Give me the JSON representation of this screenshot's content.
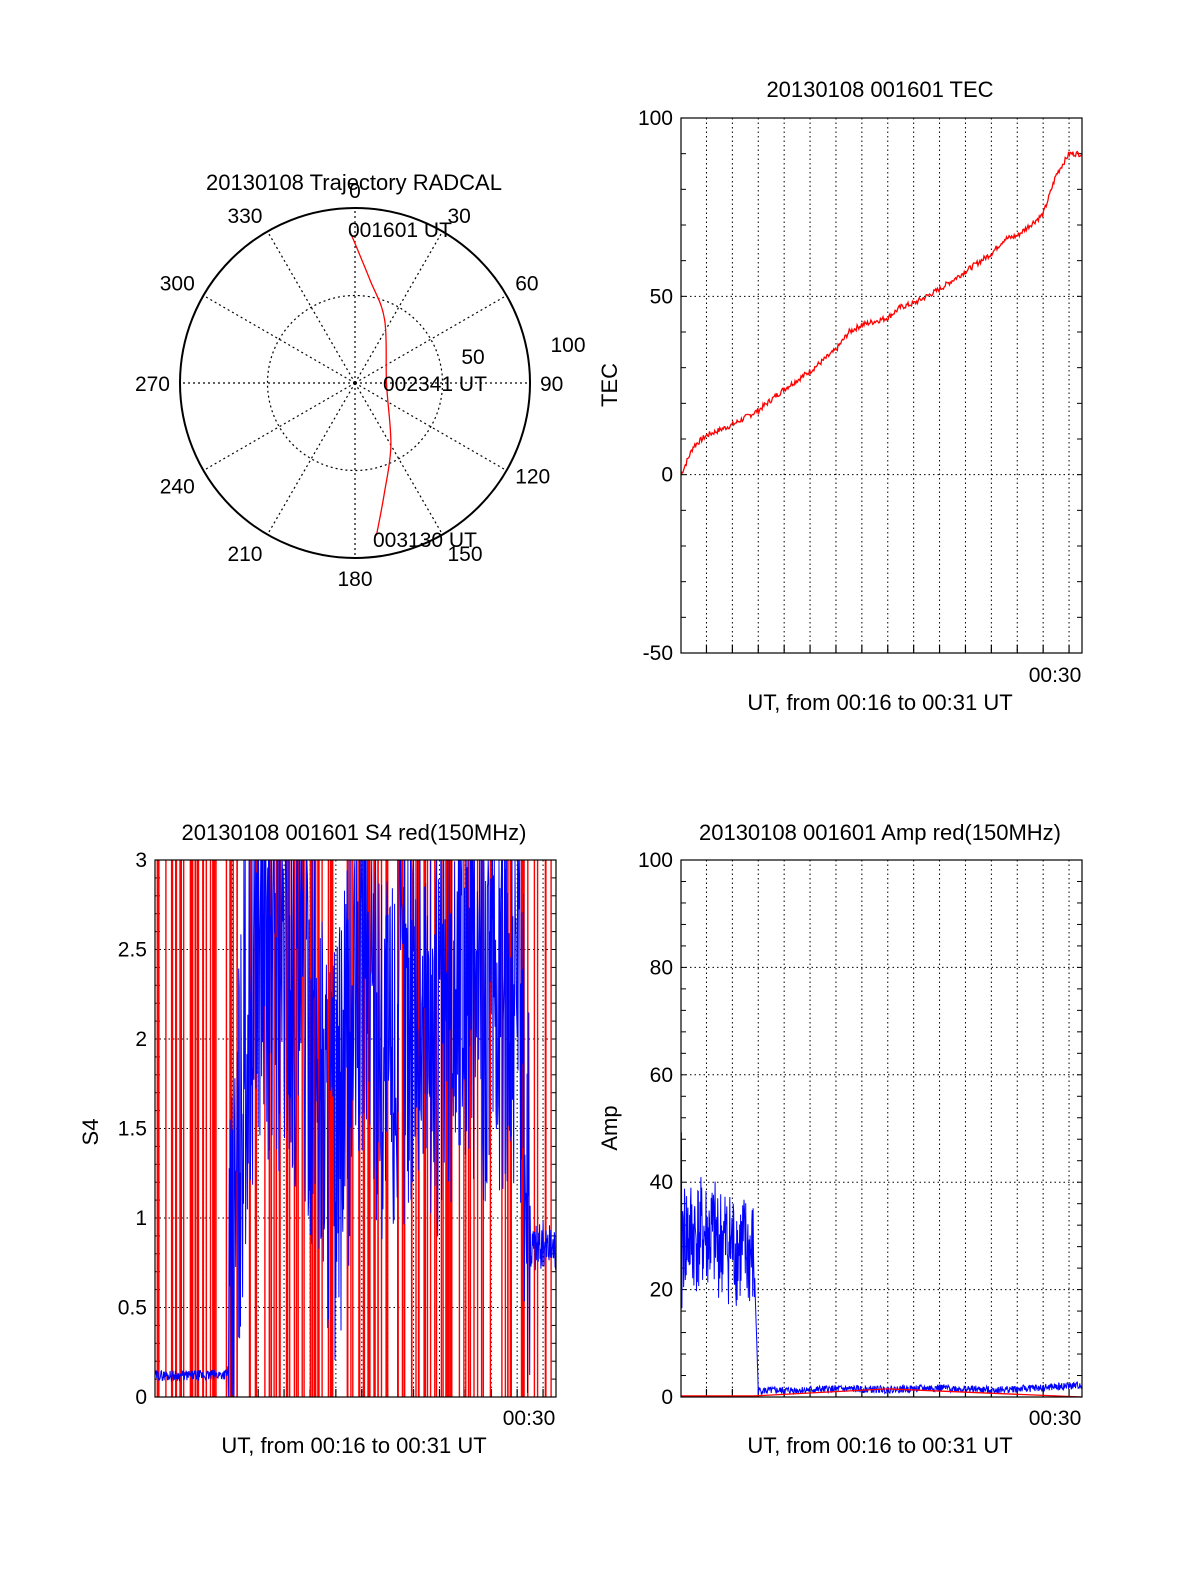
{
  "charts": {
    "polar": {
      "title": "20130108 Trajectory RADCAL",
      "angle_labels": [
        "0",
        "30",
        "60",
        "90",
        "120",
        "150",
        "180",
        "210",
        "240",
        "270",
        "300",
        "330"
      ],
      "radial_labels": [
        "50",
        "100"
      ],
      "annotations": {
        "start": "001601 UT",
        "mid": "002341 UT",
        "end": "003130 UT"
      }
    },
    "tec": {
      "title": "20130108 001601 TEC",
      "ylabel": "TEC",
      "xlabel": "UT, from 00:16 to 00:31 UT",
      "xtick": "00:30",
      "yticks": [
        "-50",
        "0",
        "50",
        "100"
      ]
    },
    "s4": {
      "title": "20130108 001601 S4 red(150MHz)",
      "ylabel": "S4",
      "xlabel": "UT, from 00:16 to 00:31 UT",
      "xtick": "00:30",
      "yticks": [
        "0",
        "0.5",
        "1",
        "1.5",
        "2",
        "2.5",
        "3"
      ]
    },
    "amp": {
      "title": "20130108 001601 Amp red(150MHz)",
      "ylabel": "Amp",
      "xlabel": "UT, from 00:16 to 00:31 UT",
      "xtick": "00:30",
      "yticks": [
        "0",
        "20",
        "40",
        "60",
        "80",
        "100"
      ]
    }
  },
  "chart_data": [
    {
      "type": "scatter",
      "title": "20130108 Trajectory RADCAL",
      "coordinate_system": "polar",
      "angle_ticks_deg": [
        0,
        30,
        60,
        90,
        120,
        150,
        180,
        210,
        240,
        270,
        300,
        330
      ],
      "radial_ticks": [
        50,
        100
      ],
      "rlim": [
        0,
        100
      ],
      "series": [
        {
          "color": "#ff0000",
          "points": [
            {
              "az": 358,
              "r": 87,
              "label": "001601 UT"
            },
            {
              "az": 8,
              "r": 60
            },
            {
              "az": 25,
              "r": 40
            },
            {
              "az": 90,
              "r": 18,
              "label": "002341 UT"
            },
            {
              "az": 150,
              "r": 41
            },
            {
              "az": 165,
              "r": 65
            },
            {
              "az": 172,
              "r": 88,
              "label": "003130 UT"
            }
          ]
        }
      ]
    },
    {
      "type": "line",
      "title": "20130108 001601 TEC",
      "ylabel": "TEC",
      "xlabel": "UT, from 00:16 to 00:31 UT",
      "xlim": [
        "00:16:01",
        "00:31:30"
      ],
      "ylim": [
        -50,
        100
      ],
      "x_ticks": [
        "00:30"
      ],
      "y_ticks": [
        -50,
        0,
        50,
        100
      ],
      "grid": true,
      "series": [
        {
          "color": "#ff0000",
          "x": [
            "00:16:01",
            "00:16:30",
            "00:17:00",
            "00:18:00",
            "00:19:00",
            "00:20:00",
            "00:21:00",
            "00:22:00",
            "00:22:30",
            "00:23:00",
            "00:24:00",
            "00:24:30",
            "00:25:00",
            "00:25:30",
            "00:26:00",
            "00:27:00",
            "00:28:00",
            "00:28:30",
            "00:29:00",
            "00:29:30",
            "00:30:00",
            "00:30:30",
            "00:31:00",
            "00:31:30"
          ],
          "y": [
            0,
            8,
            11,
            14,
            18,
            24,
            29,
            35,
            40,
            42,
            44,
            47,
            48,
            50,
            52,
            57,
            62,
            66,
            67,
            70,
            73,
            84,
            90,
            90
          ]
        }
      ]
    },
    {
      "type": "line",
      "title": "20130108 001601 S4 red(150MHz)",
      "ylabel": "S4",
      "xlabel": "UT, from 00:16 to 00:31 UT",
      "xlim": [
        "00:16:01",
        "00:31:30"
      ],
      "ylim": [
        0,
        3
      ],
      "x_ticks": [
        "00:30"
      ],
      "y_ticks": [
        0,
        0.5,
        1,
        1.5,
        2,
        2.5,
        3
      ],
      "grid": true,
      "series": [
        {
          "color": "#0000ff",
          "x": [
            "00:16:01",
            "00:17:00",
            "00:18:00",
            "00:18:50",
            "00:19:30",
            "00:20:00",
            "00:21:00",
            "00:22:00",
            "00:23:00",
            "00:24:00",
            "00:25:00",
            "00:26:00",
            "00:27:00",
            "00:28:00",
            "00:29:00",
            "00:30:00",
            "00:30:30",
            "00:31:30"
          ],
          "y": [
            0.12,
            0.12,
            0.12,
            0.13,
            2.0,
            2.6,
            2.4,
            2.1,
            1.3,
            2.5,
            1.9,
            2.3,
            2.0,
            2.5,
            2.2,
            2.4,
            0.85,
            0.85
          ]
        },
        {
          "color": "#ff0000",
          "y_range": [
            0,
            3
          ],
          "note": "dense vertical spikes spanning 0 to 3 throughout"
        }
      ]
    },
    {
      "type": "line",
      "title": "20130108 001601 Amp red(150MHz)",
      "ylabel": "Amp",
      "xlabel": "UT, from 00:16 to 00:31 UT",
      "xlim": [
        "00:16:01",
        "00:31:30"
      ],
      "ylim": [
        0,
        100
      ],
      "x_ticks": [
        "00:30"
      ],
      "y_ticks": [
        0,
        20,
        40,
        60,
        80,
        100
      ],
      "grid": true,
      "series": [
        {
          "color": "#0000ff",
          "x": [
            "00:16:01",
            "00:17:00",
            "00:18:00",
            "00:18:50",
            "00:19:00",
            "00:20:00",
            "00:22:00",
            "00:24:00",
            "00:26:00",
            "00:28:00",
            "00:30:00",
            "00:31:30"
          ],
          "y": [
            30,
            30,
            28,
            26,
            0.5,
            0.5,
            0.8,
            0.7,
            1.0,
            0.6,
            1.0,
            1.5
          ]
        },
        {
          "color": "#ff0000",
          "x": [
            "00:16:01",
            "00:18:50",
            "00:24:00",
            "00:31:30"
          ],
          "y": [
            0.2,
            0.2,
            1.5,
            0
          ]
        }
      ]
    }
  ]
}
